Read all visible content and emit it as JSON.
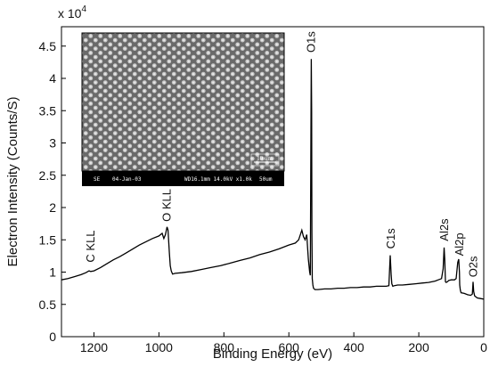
{
  "chart_data": {
    "type": "line",
    "xlabel": "Binding Energy (eV)",
    "ylabel": "Electron Intensity (Counts/S)",
    "y_multiplier": {
      "base": "x 10",
      "exponent": "4"
    },
    "xlim": [
      1300,
      0
    ],
    "ylim": [
      0,
      4.8
    ],
    "x_reversed": true,
    "x_ticks": [
      1200,
      1000,
      800,
      600,
      400,
      200,
      0
    ],
    "y_ticks": [
      0,
      0.5,
      1,
      1.5,
      2,
      2.5,
      3,
      3.5,
      4,
      4.5
    ],
    "grid": false,
    "legend": "none",
    "line_color": "#000000",
    "series": [
      {
        "values_x": [
          1300,
          1280,
          1260,
          1240,
          1225,
          1215,
          1210,
          1200,
          1180,
          1160,
          1140,
          1120,
          1100,
          1080,
          1060,
          1040,
          1020,
          1000,
          990,
          985,
          980,
          975,
          972,
          968,
          965,
          962,
          958,
          950,
          930,
          900,
          870,
          840,
          810,
          780,
          750,
          720,
          690,
          660,
          630,
          600,
          580,
          570,
          560,
          555,
          550,
          545,
          540,
          536,
          534,
          532,
          531,
          530,
          529,
          528,
          526,
          524,
          520,
          510,
          490,
          470,
          450,
          430,
          410,
          390,
          370,
          350,
          330,
          310,
          300,
          292,
          288,
          285,
          283,
          280,
          275,
          265,
          250,
          230,
          210,
          190,
          170,
          150,
          140,
          130,
          125,
          122,
          120,
          118,
          116,
          112,
          108,
          100,
          90,
          85,
          80,
          77,
          75,
          74,
          72,
          70,
          60,
          50,
          40,
          35,
          33,
          31,
          28,
          20,
          10,
          0
        ],
        "values_y": [
          0.88,
          0.9,
          0.93,
          0.96,
          0.99,
          1.02,
          1.01,
          1.02,
          1.07,
          1.13,
          1.19,
          1.24,
          1.3,
          1.36,
          1.42,
          1.47,
          1.52,
          1.56,
          1.6,
          1.52,
          1.58,
          1.7,
          1.65,
          1.3,
          1.1,
          1.02,
          0.97,
          0.98,
          0.99,
          1.01,
          1.04,
          1.07,
          1.1,
          1.14,
          1.18,
          1.22,
          1.27,
          1.31,
          1.36,
          1.42,
          1.45,
          1.5,
          1.65,
          1.55,
          1.5,
          1.58,
          1.2,
          1.0,
          0.95,
          3.1,
          4.3,
          3.5,
          1.6,
          0.9,
          0.8,
          0.75,
          0.73,
          0.73,
          0.74,
          0.74,
          0.75,
          0.75,
          0.76,
          0.76,
          0.77,
          0.77,
          0.78,
          0.78,
          0.78,
          0.79,
          1.26,
          0.95,
          0.82,
          0.78,
          0.79,
          0.8,
          0.8,
          0.81,
          0.82,
          0.83,
          0.84,
          0.86,
          0.88,
          0.9,
          1.05,
          1.38,
          1.2,
          0.85,
          0.84,
          0.85,
          0.87,
          0.88,
          0.88,
          0.9,
          1.15,
          1.2,
          1.0,
          0.8,
          0.72,
          0.68,
          0.67,
          0.65,
          0.64,
          0.66,
          0.85,
          0.7,
          0.63,
          0.6,
          0.59,
          0.58
        ]
      }
    ],
    "annotations": [
      {
        "text": "C KLL",
        "x": 1210,
        "y": 1.15
      },
      {
        "text": "O KLL",
        "x": 975,
        "y": 1.78
      },
      {
        "text": "O1s",
        "x": 531,
        "y": 4.4
      },
      {
        "text": "C1s",
        "x": 285,
        "y": 1.36
      },
      {
        "text": "Al2s",
        "x": 120,
        "y": 1.48
      },
      {
        "text": "Al2p",
        "x": 74,
        "y": 1.25
      },
      {
        "text": "O2s",
        "x": 31,
        "y": 0.92
      }
    ]
  },
  "inset": {
    "scale_bar_label": "10 um",
    "info_bar": [
      "SE",
      "04-Jan-03",
      "WD16.1mm 14.0kV x1.0k",
      "50um"
    ]
  }
}
